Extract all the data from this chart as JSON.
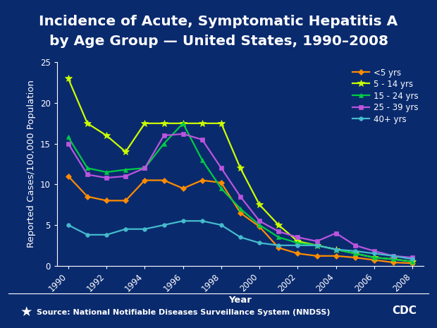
{
  "title_line1": "Incidence of Acute, Symptomatic Hepatitis A",
  "title_line2": "by Age Group — United States, 1990–2008",
  "xlabel": "Year",
  "ylabel": "Reported Cases/100,000 Population",
  "source": "Source: National Notifiable Diseases Surveillance System (NNDSS)",
  "background_color": "#0A2A6E",
  "plot_bg_color": "#0A2A6E",
  "teal_line_color": "#00C4B4",
  "years": [
    1990,
    1991,
    1992,
    1993,
    1994,
    1995,
    1996,
    1997,
    1998,
    1999,
    2000,
    2001,
    2002,
    2003,
    2004,
    2005,
    2006,
    2007,
    2008
  ],
  "series": [
    {
      "label": "<5 yrs",
      "color": "#FF8C00",
      "marker": "D",
      "markersize": 4,
      "values": [
        11.0,
        8.5,
        8.0,
        8.0,
        10.5,
        10.5,
        9.5,
        10.5,
        10.2,
        6.5,
        4.8,
        2.2,
        1.5,
        1.2,
        1.2,
        1.0,
        0.7,
        0.4,
        0.3
      ]
    },
    {
      "label": "5 - 14 yrs",
      "color": "#CCFF00",
      "marker": "*",
      "markersize": 7,
      "values": [
        23.0,
        17.5,
        16.0,
        14.0,
        17.5,
        17.5,
        17.5,
        17.5,
        17.5,
        12.0,
        7.5,
        5.0,
        3.0,
        2.5,
        2.0,
        1.5,
        1.0,
        0.8,
        0.5
      ]
    },
    {
      "label": "15 - 24 yrs",
      "color": "#00CC44",
      "marker": "^",
      "markersize": 5,
      "values": [
        15.8,
        12.0,
        11.5,
        11.8,
        12.0,
        15.0,
        17.5,
        13.0,
        9.5,
        7.0,
        5.0,
        3.5,
        2.8,
        2.5,
        2.0,
        1.5,
        1.0,
        0.8,
        0.5
      ]
    },
    {
      "label": "25 - 39 yrs",
      "color": "#BB55DD",
      "marker": "s",
      "markersize": 5,
      "values": [
        15.0,
        11.2,
        10.8,
        11.0,
        12.0,
        16.0,
        16.2,
        15.5,
        12.0,
        8.5,
        5.5,
        4.2,
        3.5,
        3.0,
        4.0,
        2.5,
        1.8,
        1.2,
        1.0
      ]
    },
    {
      "label": "40+ yrs",
      "color": "#44BBCC",
      "marker": "o",
      "markersize": 4,
      "values": [
        5.0,
        3.8,
        3.8,
        4.5,
        4.5,
        5.0,
        5.5,
        5.5,
        5.0,
        3.5,
        2.8,
        2.5,
        2.5,
        2.5,
        2.0,
        1.8,
        1.5,
        1.2,
        0.8
      ]
    }
  ],
  "ylim": [
    0,
    25
  ],
  "yticks": [
    0,
    5,
    10,
    15,
    20,
    25
  ],
  "xticks": [
    1990,
    1992,
    1994,
    1996,
    1998,
    2000,
    2002,
    2004,
    2006,
    2008
  ],
  "title_fontsize": 14.5,
  "axis_label_fontsize": 9.5,
  "tick_fontsize": 8.5,
  "legend_fontsize": 8.5,
  "source_fontsize": 8
}
